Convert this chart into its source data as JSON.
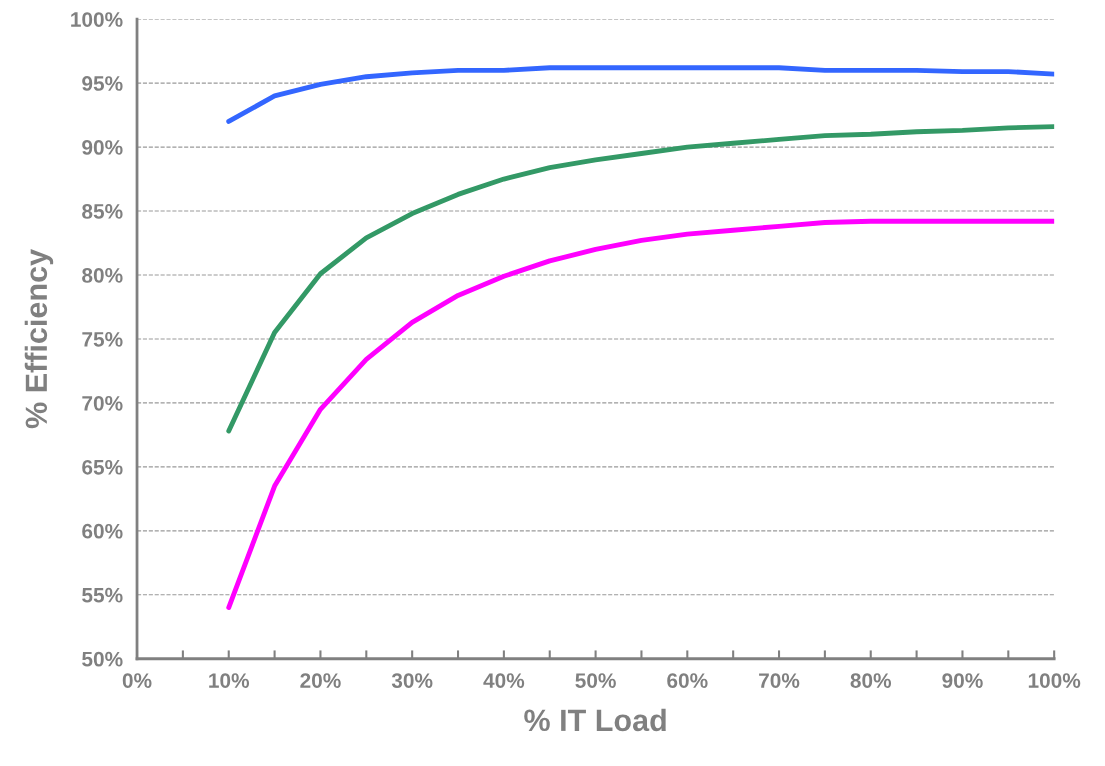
{
  "chart_data": {
    "type": "line",
    "xlabel": "% IT Load",
    "ylabel": "% Efficiency",
    "x": [
      10,
      15,
      20,
      25,
      30,
      35,
      40,
      45,
      50,
      55,
      60,
      65,
      70,
      75,
      80,
      85,
      90,
      95,
      100
    ],
    "series": [
      {
        "color": "#3366ff",
        "values": [
          92.0,
          94.0,
          94.9,
          95.5,
          95.8,
          96.0,
          96.0,
          96.2,
          96.2,
          96.2,
          96.2,
          96.2,
          96.2,
          96.0,
          96.0,
          96.0,
          95.9,
          95.9,
          95.7
        ]
      },
      {
        "color": "#339966",
        "values": [
          67.8,
          75.5,
          80.1,
          82.9,
          84.8,
          86.3,
          87.5,
          88.4,
          89.0,
          89.5,
          90.0,
          90.3,
          90.6,
          90.9,
          91.0,
          91.2,
          91.3,
          91.5,
          91.6
        ]
      },
      {
        "color": "#ff00ff",
        "values": [
          54.0,
          63.5,
          69.5,
          73.4,
          76.3,
          78.4,
          79.9,
          81.1,
          82.0,
          82.7,
          83.2,
          83.5,
          83.8,
          84.1,
          84.2,
          84.2,
          84.2,
          84.2,
          84.2
        ]
      }
    ],
    "xlim": [
      0,
      100
    ],
    "xticks": [
      {
        "value": 0,
        "label": "0%"
      },
      {
        "value": 5,
        "label": null
      },
      {
        "value": 10,
        "label": "10%"
      },
      {
        "value": 15,
        "label": null
      },
      {
        "value": 20,
        "label": "20%"
      },
      {
        "value": 25,
        "label": null
      },
      {
        "value": 30,
        "label": "30%"
      },
      {
        "value": 35,
        "label": null
      },
      {
        "value": 40,
        "label": "40%"
      },
      {
        "value": 45,
        "label": null
      },
      {
        "value": 50,
        "label": "50%"
      },
      {
        "value": 55,
        "label": null
      },
      {
        "value": 60,
        "label": "60%"
      },
      {
        "value": 65,
        "label": null
      },
      {
        "value": 70,
        "label": "70%"
      },
      {
        "value": 75,
        "label": null
      },
      {
        "value": 80,
        "label": "80%"
      },
      {
        "value": 85,
        "label": null
      },
      {
        "value": 90,
        "label": "90%"
      },
      {
        "value": 95,
        "label": null
      },
      {
        "value": 100,
        "label": "100%"
      }
    ],
    "ylim": [
      50,
      100
    ],
    "yticks": [
      {
        "value": 50,
        "label": "50%"
      },
      {
        "value": 55,
        "label": "55%"
      },
      {
        "value": 60,
        "label": "60%"
      },
      {
        "value": 65,
        "label": "65%"
      },
      {
        "value": 70,
        "label": "70%"
      },
      {
        "value": 75,
        "label": "75%"
      },
      {
        "value": 80,
        "label": "80%"
      },
      {
        "value": 85,
        "label": "85%"
      },
      {
        "value": 90,
        "label": "90%"
      },
      {
        "value": 95,
        "label": "95%"
      },
      {
        "value": 100,
        "label": "100%"
      }
    ],
    "grid": "y",
    "marker": "none",
    "line_style": "solid"
  }
}
